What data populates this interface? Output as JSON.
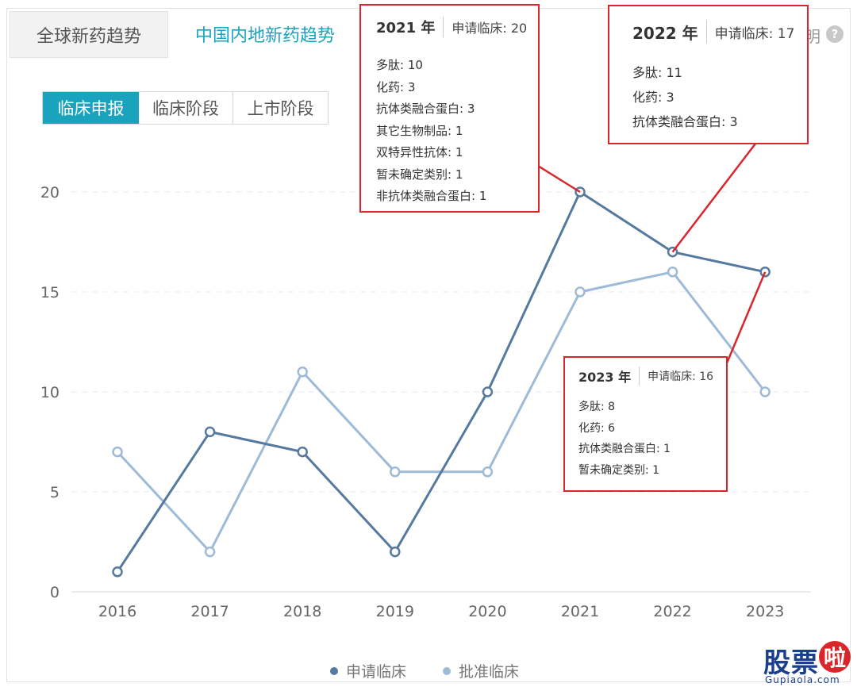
{
  "tabs": {
    "global": "全球新药趋势",
    "china": "中国内地新药趋势",
    "active": "china"
  },
  "help": {
    "text": "明",
    "icon": "question-icon"
  },
  "segment": {
    "items": [
      "临床申报",
      "临床阶段",
      "上市阶段"
    ],
    "active": "临床申报"
  },
  "tooltips": {
    "t2021": {
      "year": "2021 年",
      "apply": "申请临床: 20",
      "rows": [
        "多肽: 10",
        "化药: 3",
        "抗体类融合蛋白: 3",
        "其它生物制品: 1",
        "双特异性抗体: 1",
        "暂未确定类别: 1",
        "非抗体类融合蛋白: 1"
      ]
    },
    "t2022": {
      "year": "2022 年",
      "apply": "申请临床: 17",
      "rows": [
        "多肽: 11",
        "化药: 3",
        "抗体类融合蛋白: 3"
      ]
    },
    "t2023": {
      "year": "2023 年",
      "apply": "申请临床: 16",
      "rows": [
        "多肽: 8",
        "化药: 6",
        "抗体类融合蛋白: 1",
        "暂未确定类别: 1"
      ]
    }
  },
  "chart_data": {
    "type": "line",
    "x": [
      "2016",
      "2017",
      "2018",
      "2019",
      "2020",
      "2021",
      "2022",
      "2023"
    ],
    "yticks": [
      0,
      5,
      10,
      15,
      20
    ],
    "ylim": [
      0,
      20
    ],
    "grid": true,
    "legend_position": "bottom",
    "series": [
      {
        "name": "申请临床",
        "values": [
          1,
          8,
          7,
          2,
          10,
          20,
          17,
          16
        ],
        "color": "#56799f"
      },
      {
        "name": "批准临床",
        "values": [
          7,
          2,
          11,
          6,
          6,
          15,
          16,
          10
        ],
        "color": "#9dbad6"
      }
    ]
  },
  "colors": {
    "accent": "#1aa3bd",
    "annotation": "#d9262a"
  },
  "watermark": {
    "logo": "股票",
    "badge": "啦",
    "site": "Gupiaola.com"
  }
}
